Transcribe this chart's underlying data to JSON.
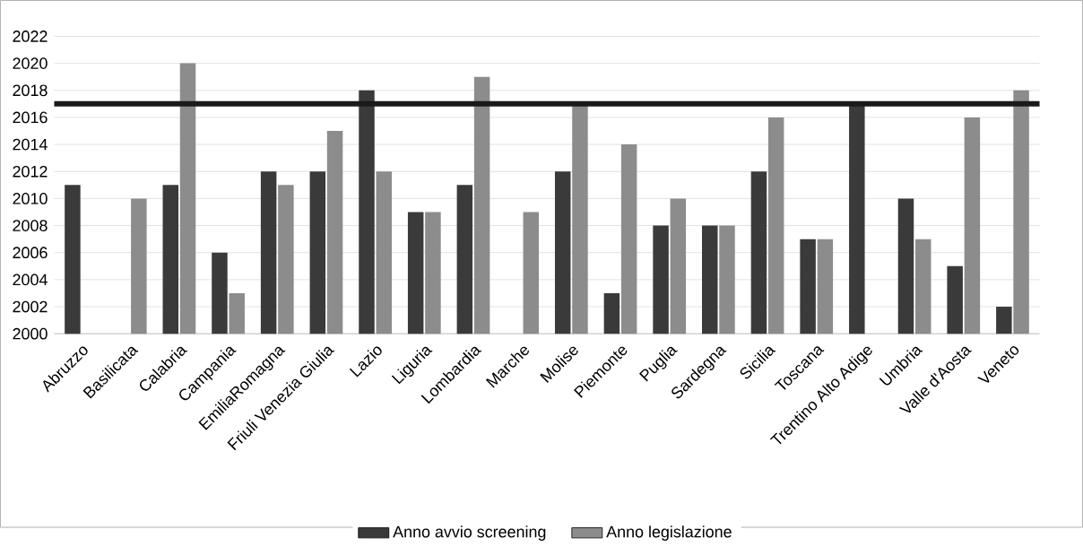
{
  "chart_data": {
    "type": "bar",
    "categories": [
      "Abruzzo",
      "Basilicata",
      "Calabria",
      "Campania",
      "EmiliaRomagna",
      "Friuli Venezia Giulia",
      "Lazio",
      "Liguria",
      "Lombardia",
      "Marche",
      "Molise",
      "Piemonte",
      "Puglia",
      "Sardegna",
      "Sicilia",
      "Toscana",
      "Trentino Alto Adige",
      "Umbria",
      "Valle d'Aosta",
      "Veneto"
    ],
    "series": [
      {
        "name": "Anno avvio screening",
        "color": "#3a3a3a",
        "values": [
          2011,
          2000,
          2011,
          2006,
          2012,
          2012,
          2018,
          2009,
          2011,
          2000,
          2012,
          2003,
          2008,
          2008,
          2012,
          2007,
          2017,
          2010,
          2005,
          2002
        ]
      },
      {
        "name": "Anno legislazione",
        "color": "#8c8c8c",
        "values": [
          2000,
          2010,
          2020,
          2003,
          2011,
          2015,
          2012,
          2009,
          2019,
          2009,
          2017,
          2014,
          2010,
          2008,
          2016,
          2007,
          2000,
          2007,
          2016,
          2018
        ]
      }
    ],
    "ylim": [
      2000,
      2022
    ],
    "yticks": [
      2000,
      2002,
      2004,
      2006,
      2008,
      2010,
      2012,
      2014,
      2016,
      2018,
      2020,
      2022
    ],
    "grid": "y",
    "legend": "bottom",
    "ref_lines": [
      {
        "axis": "y",
        "value": 2017,
        "color": "#1a1a1a"
      }
    ]
  }
}
